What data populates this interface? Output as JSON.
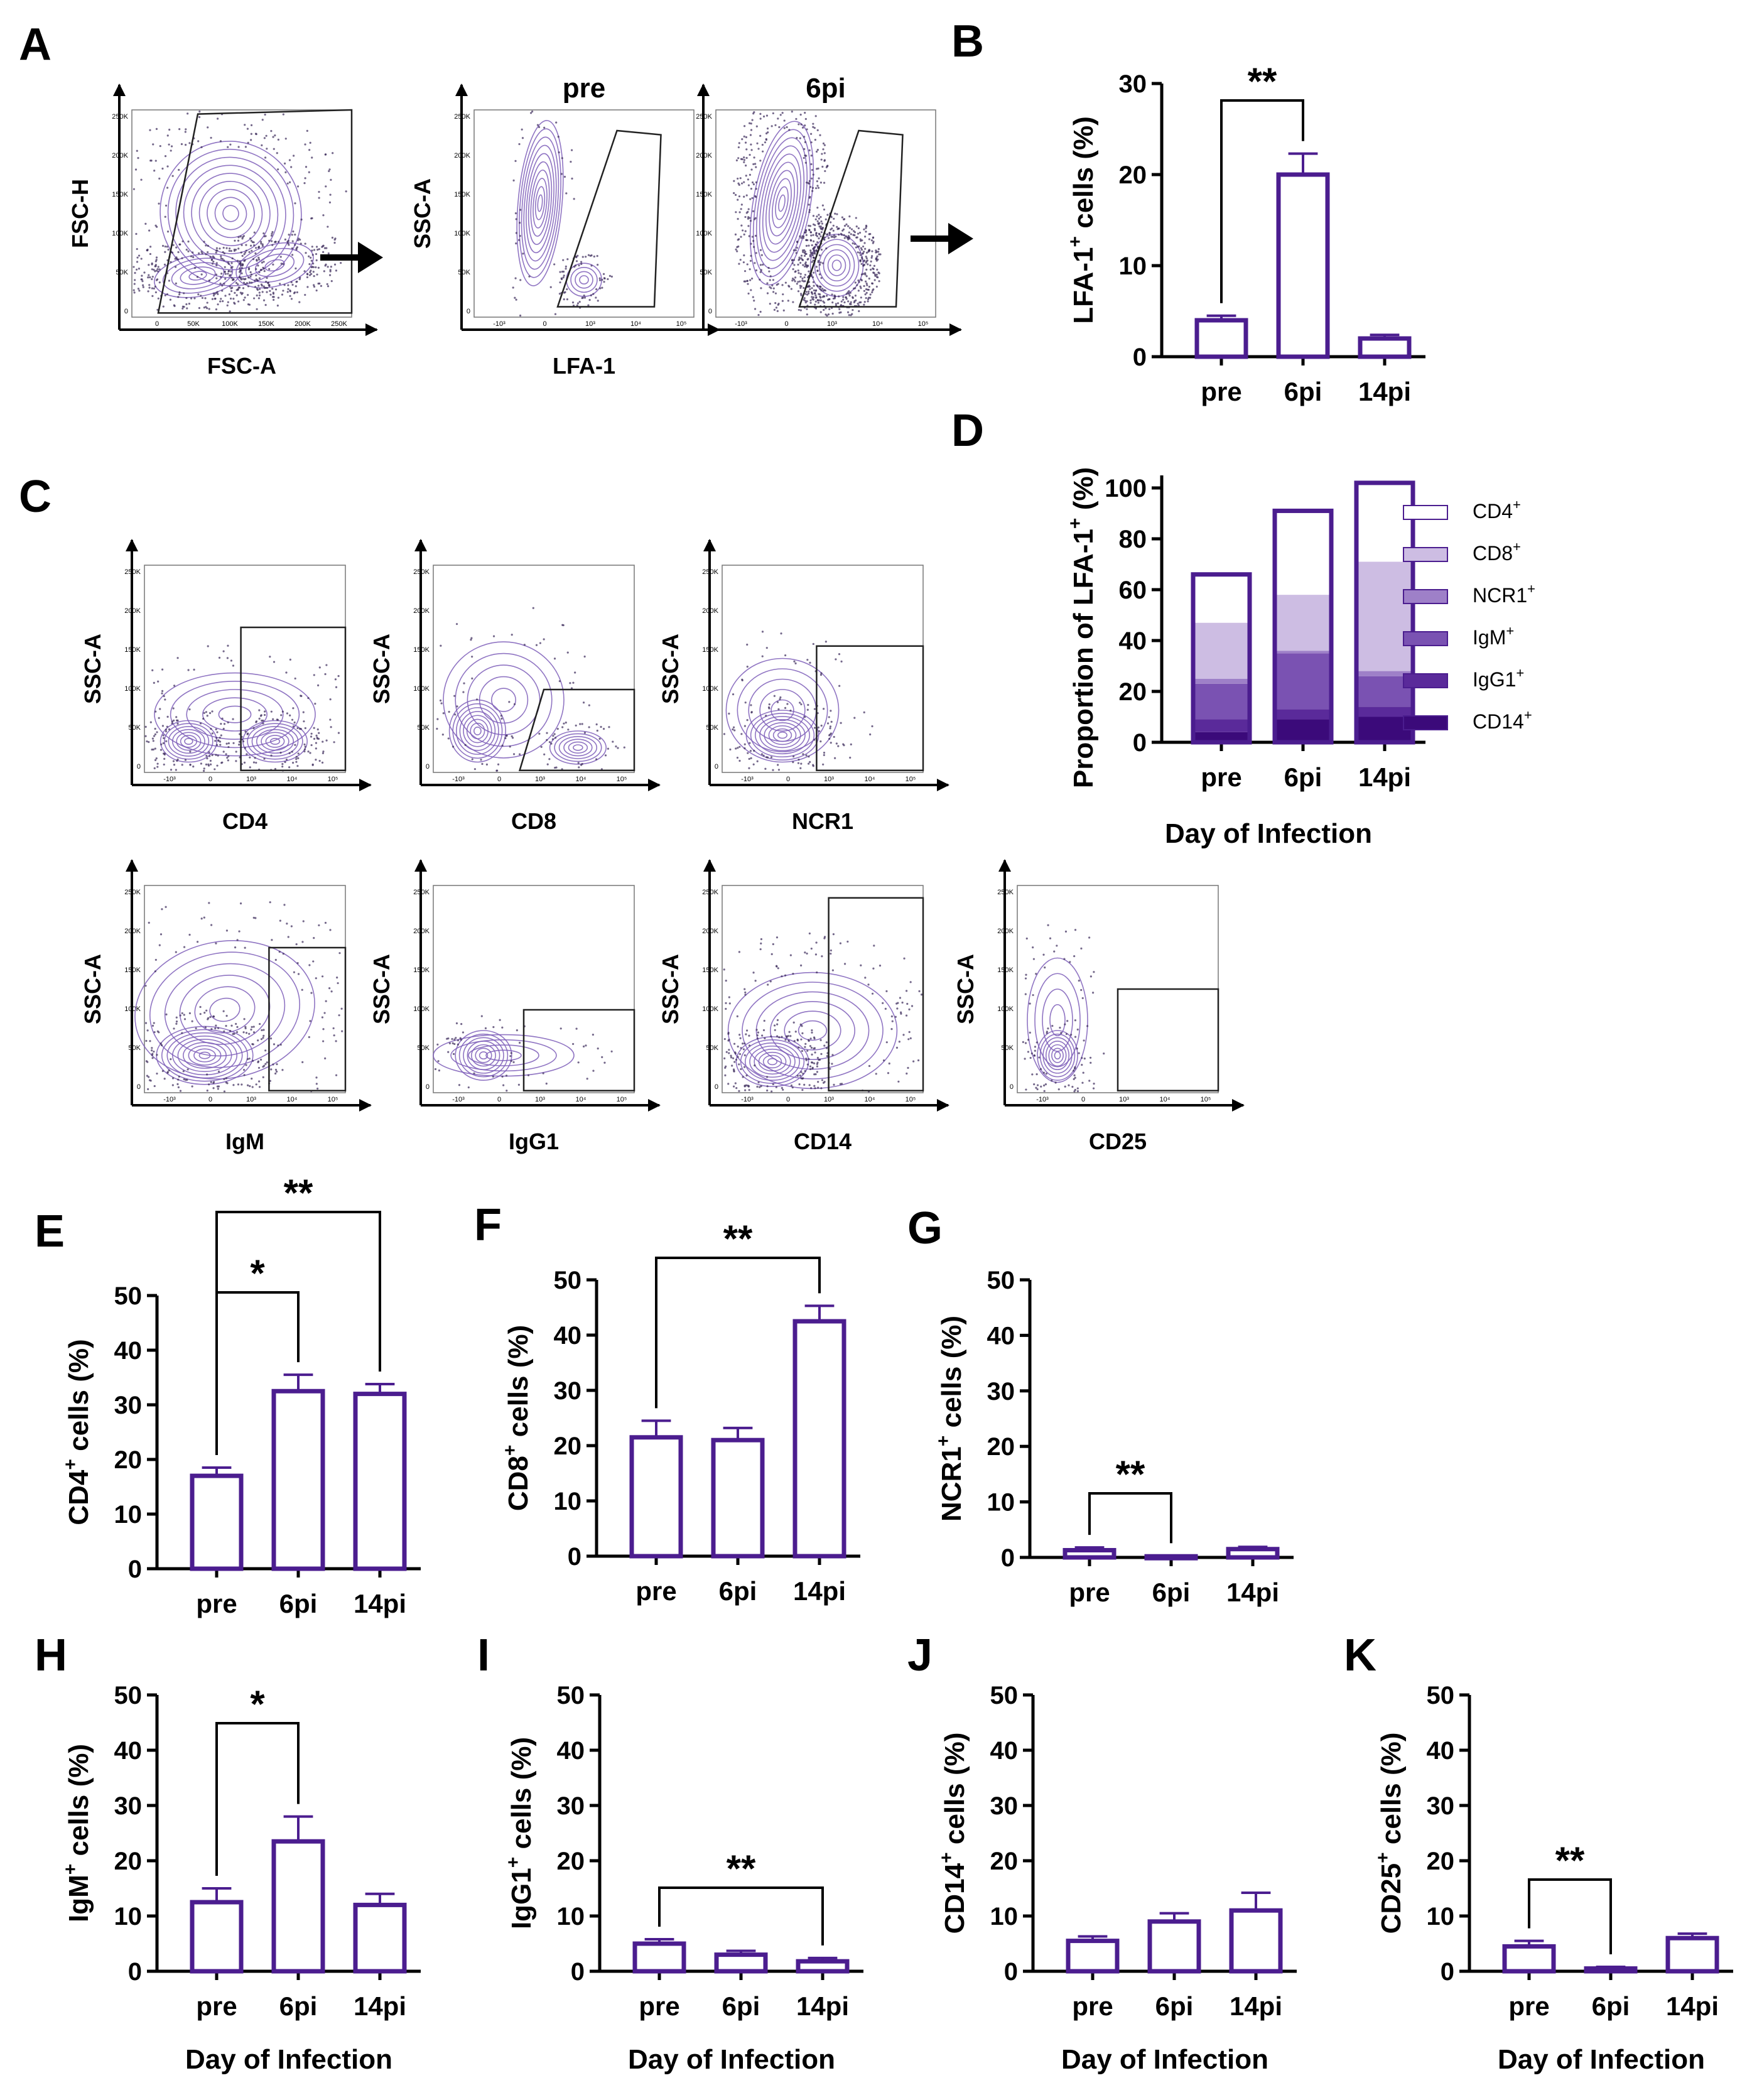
{
  "colors": {
    "bar_outline": "#4b1d8f",
    "contour": "#7d5db8",
    "dots": "#3a2a5a",
    "stack": [
      "#3b0a7a",
      "#5a2a9a",
      "#7a52b2",
      "#9e80c8",
      "#cdbde3",
      "#ffffff"
    ]
  },
  "panels": {
    "A": {
      "letter": "A",
      "plot1": {
        "x_label": "FSC-A",
        "y_label": "FSC-H",
        "y_ticks": [
          "250K",
          "200K",
          "150K",
          "100K",
          "50K",
          "0"
        ],
        "x_ticks": [
          "0",
          "50K",
          "100K",
          "150K",
          "200K",
          "250K"
        ]
      },
      "plot2": {
        "title": "pre",
        "x_label": "LFA-1",
        "y_label": "SSC-A",
        "y_ticks": [
          "250K",
          "200K",
          "150K",
          "100K",
          "50K",
          "0"
        ],
        "x_ticks": [
          "-10³",
          "0",
          "10³",
          "10⁴",
          "10⁵"
        ]
      },
      "plot3": {
        "title": "6pi",
        "x_ticks": [
          "-10³",
          "0",
          "10³",
          "10⁴",
          "10⁵"
        ]
      }
    },
    "C": {
      "letter": "C",
      "plots": [
        {
          "marker": "CD4",
          "y_label": "SSC-A"
        },
        {
          "marker": "CD8",
          "y_label": "SSC-A"
        },
        {
          "marker": "NCR1",
          "y_label": "SSC-A"
        },
        {
          "marker": "IgM",
          "y_label": "SSC-A"
        },
        {
          "marker": "IgG1",
          "y_label": "SSC-A"
        },
        {
          "marker": "CD14",
          "y_label": "SSC-A"
        },
        {
          "marker": "CD25",
          "y_label": "SSC-A"
        }
      ],
      "y_ticks": [
        "250K",
        "200K",
        "150K",
        "100K",
        "50K",
        "0"
      ],
      "x_ticks": [
        "-10³",
        "0",
        "10³",
        "10⁴",
        "10⁵"
      ]
    },
    "D": {
      "letter": "D",
      "x_label": "Day of Infection",
      "y_label_main": "Proportion of LFA-1",
      "y_label_sup": "+",
      "y_label_suffix": " (%)"
    }
  },
  "chart_data": [
    {
      "id": "B",
      "type": "bar",
      "letter": "B",
      "categories": [
        "pre",
        "6pi",
        "14pi"
      ],
      "values": [
        4.0,
        20.0,
        2.0
      ],
      "errors": [
        0.5,
        2.3,
        0.4
      ],
      "ylim": [
        0,
        30
      ],
      "yticks": [
        "0",
        "10",
        "20",
        "30"
      ],
      "ylabel_main": "LFA-1",
      "ylabel_sup": "+",
      "ylabel_suffix": " cells (%)",
      "xlabel": "",
      "significance": [
        {
          "from": 0,
          "to": 1,
          "label": "**"
        }
      ]
    },
    {
      "id": "D",
      "type": "bar",
      "stacked": true,
      "letter": "D",
      "categories": [
        "pre",
        "6pi",
        "14pi"
      ],
      "ylim": [
        0,
        100
      ],
      "yticks": [
        "0",
        "20",
        "40",
        "60",
        "80",
        "100"
      ],
      "xlabel": "Day of Infection",
      "series": [
        {
          "name": "CD14",
          "sup": "+",
          "values": [
            4,
            9,
            10
          ]
        },
        {
          "name": "IgG1",
          "sup": "+",
          "values": [
            5,
            4,
            4
          ]
        },
        {
          "name": "IgM",
          "sup": "+",
          "values": [
            14,
            22,
            12
          ]
        },
        {
          "name": "NCR1",
          "sup": "+",
          "values": [
            2,
            1,
            2
          ]
        },
        {
          "name": "CD8",
          "sup": "+",
          "values": [
            22,
            22,
            43
          ]
        },
        {
          "name": "CD4",
          "sup": "+",
          "values": [
            19,
            33,
            31
          ]
        }
      ],
      "legend": [
        "CD4",
        "CD8",
        "NCR1",
        "IgM",
        "IgG1",
        "CD14"
      ]
    },
    {
      "id": "E",
      "type": "bar",
      "letter": "E",
      "categories": [
        "pre",
        "6pi",
        "14pi"
      ],
      "values": [
        17,
        32.5,
        32
      ],
      "errors": [
        1.5,
        3,
        1.8
      ],
      "ylim": [
        0,
        50
      ],
      "yticks": [
        "0",
        "10",
        "20",
        "30",
        "40",
        "50"
      ],
      "ylabel_main": "CD4",
      "ylabel_sup": "+",
      "ylabel_suffix": " cells (%)",
      "xlabel": "",
      "significance": [
        {
          "from": 0,
          "to": 1,
          "label": "*",
          "level": 0
        },
        {
          "from": 0,
          "to": 2,
          "label": "**",
          "level": 1
        }
      ]
    },
    {
      "id": "F",
      "type": "bar",
      "letter": "F",
      "categories": [
        "pre",
        "6pi",
        "14pi"
      ],
      "values": [
        21.5,
        21,
        42.5
      ],
      "errors": [
        3,
        2.2,
        2.8
      ],
      "ylim": [
        0,
        50
      ],
      "yticks": [
        "0",
        "10",
        "20",
        "30",
        "40",
        "50"
      ],
      "ylabel_main": "CD8",
      "ylabel_sup": "+",
      "ylabel_suffix": " cells (%)",
      "xlabel": "",
      "significance": [
        {
          "from": 0,
          "to": 2,
          "label": "**",
          "level": 0
        }
      ]
    },
    {
      "id": "G",
      "type": "bar",
      "letter": "G",
      "categories": [
        "pre",
        "6pi",
        "14pi"
      ],
      "values": [
        1.3,
        0.2,
        1.5
      ],
      "errors": [
        0.5,
        0.1,
        0.4
      ],
      "ylim": [
        0,
        50
      ],
      "yticks": [
        "0",
        "10",
        "20",
        "30",
        "40",
        "50"
      ],
      "ylabel_main": "NCR1",
      "ylabel_sup": "+",
      "ylabel_suffix": " cells (%)",
      "xlabel": "",
      "significance": [
        {
          "from": 0,
          "to": 1,
          "label": "**",
          "level": 0
        }
      ]
    },
    {
      "id": "H",
      "type": "bar",
      "letter": "H",
      "categories": [
        "pre",
        "6pi",
        "14pi"
      ],
      "values": [
        12.5,
        23.5,
        12
      ],
      "errors": [
        2.5,
        4.5,
        2
      ],
      "ylim": [
        0,
        50
      ],
      "yticks": [
        "0",
        "10",
        "20",
        "30",
        "40",
        "50"
      ],
      "ylabel_main": "IgM",
      "ylabel_sup": "+",
      "ylabel_suffix": " cells (%)",
      "xlabel": "Day of Infection",
      "significance": [
        {
          "from": 0,
          "to": 1,
          "label": "*",
          "level": 0
        }
      ]
    },
    {
      "id": "I",
      "type": "bar",
      "letter": "I",
      "categories": [
        "pre",
        "6pi",
        "14pi"
      ],
      "values": [
        5,
        3,
        1.8
      ],
      "errors": [
        0.8,
        0.7,
        0.6
      ],
      "ylim": [
        0,
        50
      ],
      "yticks": [
        "0",
        "10",
        "20",
        "30",
        "40",
        "50"
      ],
      "ylabel_main": "IgG1",
      "ylabel_sup": "+",
      "ylabel_suffix": " cells (%)",
      "xlabel": "Day of Infection",
      "significance": [
        {
          "from": 0,
          "to": 2,
          "label": "**",
          "level": 0
        }
      ]
    },
    {
      "id": "J",
      "type": "bar",
      "letter": "J",
      "categories": [
        "pre",
        "6pi",
        "14pi"
      ],
      "values": [
        5.5,
        9,
        11
      ],
      "errors": [
        0.8,
        1.5,
        3.2
      ],
      "ylim": [
        0,
        50
      ],
      "yticks": [
        "0",
        "10",
        "20",
        "30",
        "40",
        "50"
      ],
      "ylabel_main": "CD14",
      "ylabel_sup": "+",
      "ylabel_suffix": " cells (%)",
      "xlabel": "Day of Infection",
      "significance": []
    },
    {
      "id": "K",
      "type": "bar",
      "letter": "K",
      "categories": [
        "pre",
        "6pi",
        "14pi"
      ],
      "values": [
        4.5,
        0.5,
        6
      ],
      "errors": [
        1,
        0.3,
        0.8
      ],
      "ylim": [
        0,
        50
      ],
      "yticks": [
        "0",
        "10",
        "20",
        "30",
        "40",
        "50"
      ],
      "ylabel_main": "CD25",
      "ylabel_sup": "+",
      "ylabel_suffix": " cells (%)",
      "xlabel": "Day of Infection",
      "significance": [
        {
          "from": 0,
          "to": 1,
          "label": "**",
          "level": 0
        }
      ]
    }
  ]
}
